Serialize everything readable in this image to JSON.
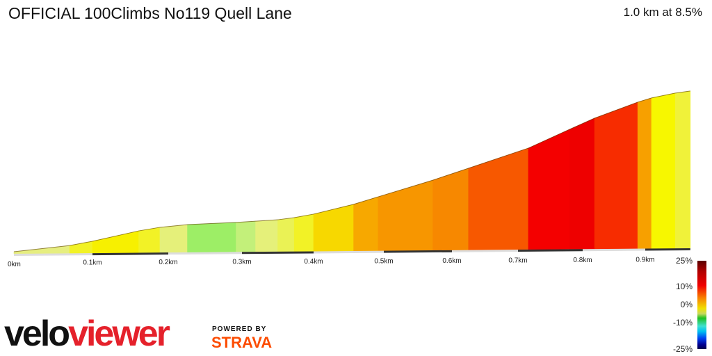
{
  "header": {
    "title": "OFFICIAL 100Climbs No119 Quell Lane",
    "summary": "1.0 km at 8.5%"
  },
  "legend": {
    "labels": [
      "25%",
      "10%",
      "0%",
      "-10%",
      "-25%"
    ]
  },
  "branding": {
    "logo_part1": "velo",
    "logo_part2": "viewer",
    "powered_by": "POWERED BY",
    "strava": "STRAVA",
    "logo_colors": {
      "velo": "#111111",
      "viewer": "#e5212b",
      "strava": "#fc4c02"
    }
  },
  "chart_data": {
    "type": "area",
    "title": "",
    "xlabel": "",
    "ylabel": "",
    "x_ticks": [
      "0km",
      "0.1km",
      "0.2km",
      "0.3km",
      "0.4km",
      "0.5km",
      "0.6km",
      "0.7km",
      "0.8km",
      "0.9km"
    ],
    "profile_km": [
      0,
      0.071,
      0.1,
      0.161,
      0.189,
      0.226,
      0.292,
      0.319,
      0.35,
      0.373,
      0.4,
      0.457,
      0.492,
      0.572,
      0.625,
      0.716,
      0.78,
      0.819,
      0.888,
      0.91,
      0.948,
      0.972
    ],
    "profile_elev_gain_m": [
      0,
      3.2,
      5.5,
      11.1,
      13.0,
      14.4,
      15.4,
      16.0,
      16.7,
      17.8,
      19.7,
      25.0,
      29.1,
      38.2,
      44.7,
      55.7,
      66.1,
      72.2,
      81.0,
      83.3,
      85.9,
      87.0
    ],
    "segment_colors": [
      "#e6ee80",
      "#f2f226",
      "#f7f000",
      "#f2f226",
      "#e5f07a",
      "#9dee66",
      "#c3f07a",
      "#e5f07a",
      "#eaf255",
      "#f2f226",
      "#f7d800",
      "#f7a800",
      "#f79600",
      "#f78800",
      "#f75800",
      "#f40000",
      "#ee0000",
      "#f72c00",
      "#f7a000",
      "#f7f700",
      "#f0f23a"
    ]
  }
}
